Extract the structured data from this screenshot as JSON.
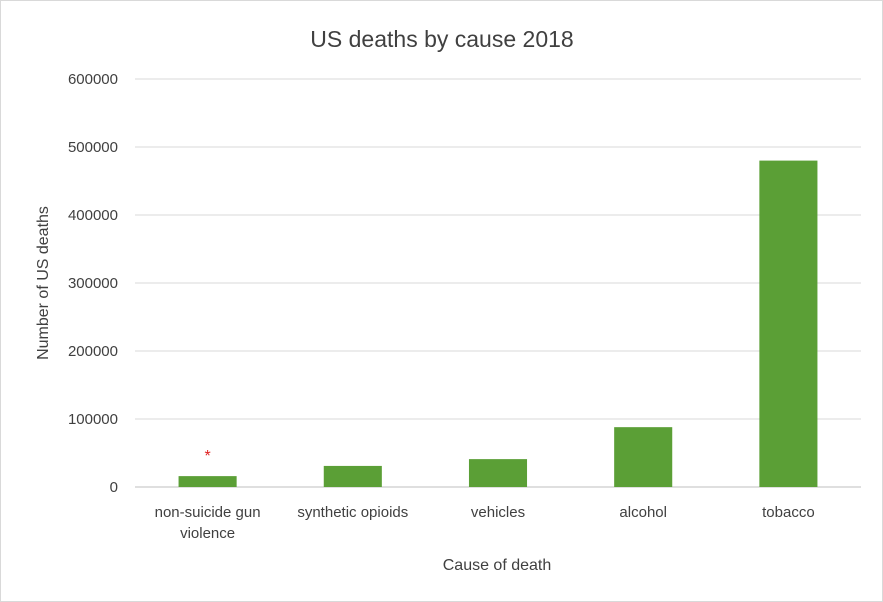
{
  "chart_data": {
    "type": "bar",
    "title": "US deaths by cause 2018",
    "xlabel": "Cause of death",
    "ylabel": "Number of US deaths",
    "ylim": [
      0,
      600000
    ],
    "yticks": [
      "0",
      "100000",
      "200000",
      "300000",
      "400000",
      "500000",
      "600000"
    ],
    "categories": [
      [
        "non-suicide gun",
        "violence"
      ],
      [
        "synthetic opioids"
      ],
      [
        "vehicles"
      ],
      [
        "alcohol"
      ],
      [
        "tobacco"
      ]
    ],
    "values": [
      16000,
      31000,
      41000,
      88000,
      480000
    ],
    "bar_color": "#5b9f36",
    "grid": true,
    "legend": "none",
    "annotations": [
      {
        "category_index": 0,
        "text": "*",
        "color": "#e02020"
      }
    ]
  }
}
